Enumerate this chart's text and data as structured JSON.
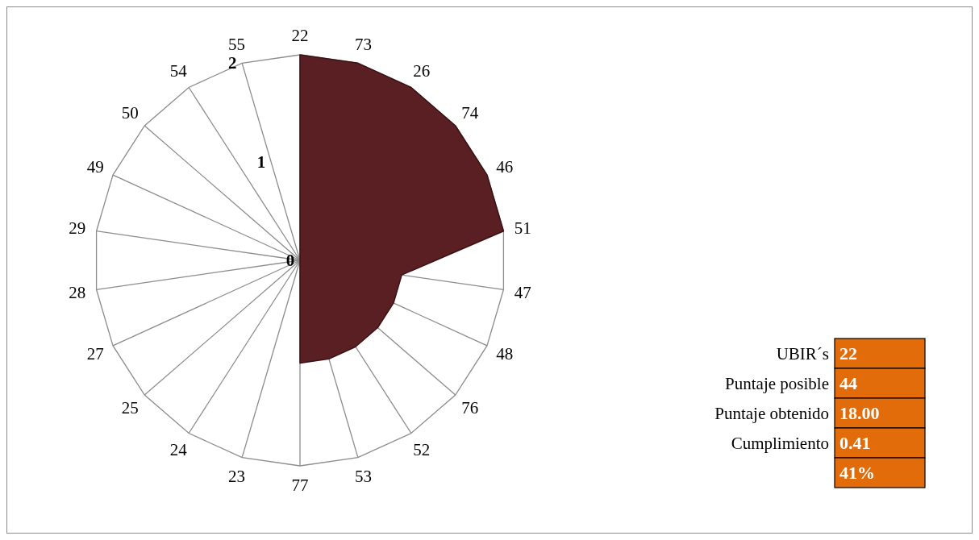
{
  "chart_data": [
    {
      "type": "radar",
      "categories": [
        "22",
        "73",
        "26",
        "74",
        "46",
        "51",
        "47",
        "48",
        "76",
        "52",
        "53",
        "77",
        "23",
        "24",
        "25",
        "27",
        "28",
        "29",
        "49",
        "50",
        "54",
        "55"
      ],
      "series": [
        {
          "color": "#5a1f22",
          "values": [
            2,
            2,
            2,
            2,
            2,
            2,
            1,
            1,
            1,
            1,
            1,
            1,
            0,
            0,
            0,
            0,
            0,
            0,
            0,
            0,
            0,
            0
          ]
        }
      ],
      "ylim": [
        0,
        2
      ],
      "yticks": [
        0,
        1,
        2
      ],
      "grid": true
    },
    {
      "type": "other",
      "annotations": [
        "UBIR´s",
        "22",
        "Puntaje posible",
        "44",
        "Puntaje obtenido",
        "18.00",
        "Cumplimiento",
        "0.41",
        "41%"
      ]
    }
  ]
}
